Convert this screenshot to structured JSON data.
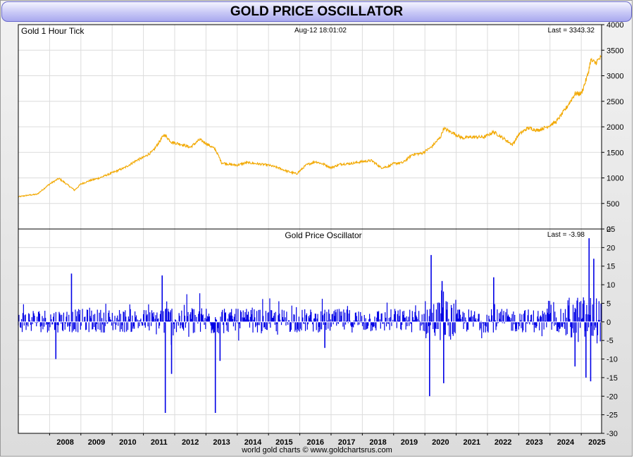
{
  "title": "GOLD PRICE OSCILLATOR",
  "footer": "world gold charts © www.goldchartsrus.com",
  "colors": {
    "price_line": "#f2a800",
    "oscillator": "#0000e6",
    "zero_line": "#ffffff",
    "title_bg": "#c8c8f6"
  },
  "chart_data": [
    {
      "type": "line",
      "name": "price-panel",
      "label": "Gold 1 Hour Tick",
      "timestamp": "Aug-12  18:01:02",
      "last": "Last = 3343.32",
      "ylim": [
        0,
        4000
      ],
      "yticks": [
        "4000",
        "3500",
        "3000",
        "2500",
        "2000",
        "1500",
        "1000",
        "500",
        "0"
      ],
      "grid": true,
      "series": [
        {
          "values_x": [
            2007.0,
            2007.3,
            2007.6,
            2008.0,
            2008.3,
            2008.5,
            2008.8,
            2009.0,
            2009.3,
            2009.6,
            2010.0,
            2010.4,
            2010.8,
            2011.0,
            2011.3,
            2011.5,
            2011.67,
            2011.9,
            2012.2,
            2012.5,
            2012.8,
            2013.0,
            2013.3,
            2013.5,
            2013.8,
            2014.0,
            2014.3,
            2014.6,
            2015.0,
            2015.3,
            2015.6,
            2015.9,
            2016.2,
            2016.5,
            2016.8,
            2017.0,
            2017.3,
            2017.6,
            2018.0,
            2018.3,
            2018.6,
            2018.8,
            2019.0,
            2019.3,
            2019.6,
            2019.9,
            2020.2,
            2020.5,
            2020.6,
            2020.9,
            2021.2,
            2021.5,
            2021.9,
            2022.2,
            2022.5,
            2022.8,
            2023.0,
            2023.3,
            2023.6,
            2023.9,
            2024.2,
            2024.5,
            2024.8,
            2025.0,
            2025.2,
            2025.3,
            2025.45,
            2025.6
          ],
          "values_y": [
            630,
            660,
            680,
            880,
            990,
            900,
            760,
            880,
            950,
            1000,
            1100,
            1200,
            1350,
            1400,
            1520,
            1700,
            1850,
            1700,
            1660,
            1600,
            1750,
            1680,
            1560,
            1300,
            1260,
            1250,
            1300,
            1280,
            1250,
            1200,
            1130,
            1080,
            1250,
            1320,
            1260,
            1200,
            1270,
            1280,
            1320,
            1340,
            1200,
            1220,
            1280,
            1300,
            1460,
            1480,
            1600,
            1800,
            1970,
            1880,
            1780,
            1800,
            1800,
            1900,
            1780,
            1650,
            1850,
            1980,
            1930,
            2000,
            2100,
            2350,
            2650,
            2650,
            3000,
            3300,
            3250,
            3343
          ]
        }
      ]
    },
    {
      "type": "bar",
      "name": "oscillator-panel",
      "label": "Gold Price Oscillator",
      "last": "Last = -3.98",
      "ylim": [
        -30,
        25
      ],
      "yticks": [
        "25",
        "20",
        "15",
        "10",
        "5",
        "0",
        "-5",
        "-10",
        "-15",
        "-20",
        "-25",
        "-30"
      ],
      "xticks": [
        "2008",
        "2009",
        "2010",
        "2011",
        "2012",
        "2013",
        "2014",
        "2015",
        "2016",
        "2017",
        "2018",
        "2019",
        "2020",
        "2021",
        "2022",
        "2023",
        "2024",
        "2025"
      ],
      "grid": true,
      "extremes": [
        {
          "x": 2008.7,
          "y": 13
        },
        {
          "x": 2008.2,
          "y": -10
        },
        {
          "x": 2011.6,
          "y": 12.5
        },
        {
          "x": 2011.7,
          "y": -24.5
        },
        {
          "x": 2011.9,
          "y": -14
        },
        {
          "x": 2013.3,
          "y": -24.5
        },
        {
          "x": 2013.45,
          "y": -10.5
        },
        {
          "x": 2020.2,
          "y": 18
        },
        {
          "x": 2020.15,
          "y": -20
        },
        {
          "x": 2020.6,
          "y": -16.5
        },
        {
          "x": 2020.55,
          "y": 11
        },
        {
          "x": 2022.2,
          "y": 12
        },
        {
          "x": 2025.25,
          "y": 22.5
        },
        {
          "x": 2025.3,
          "y": -16
        },
        {
          "x": 2025.4,
          "y": 17
        },
        {
          "x": 2025.15,
          "y": -15
        },
        {
          "x": 2024.8,
          "y": -12
        },
        {
          "x": 2016.8,
          "y": -7
        }
      ]
    }
  ]
}
